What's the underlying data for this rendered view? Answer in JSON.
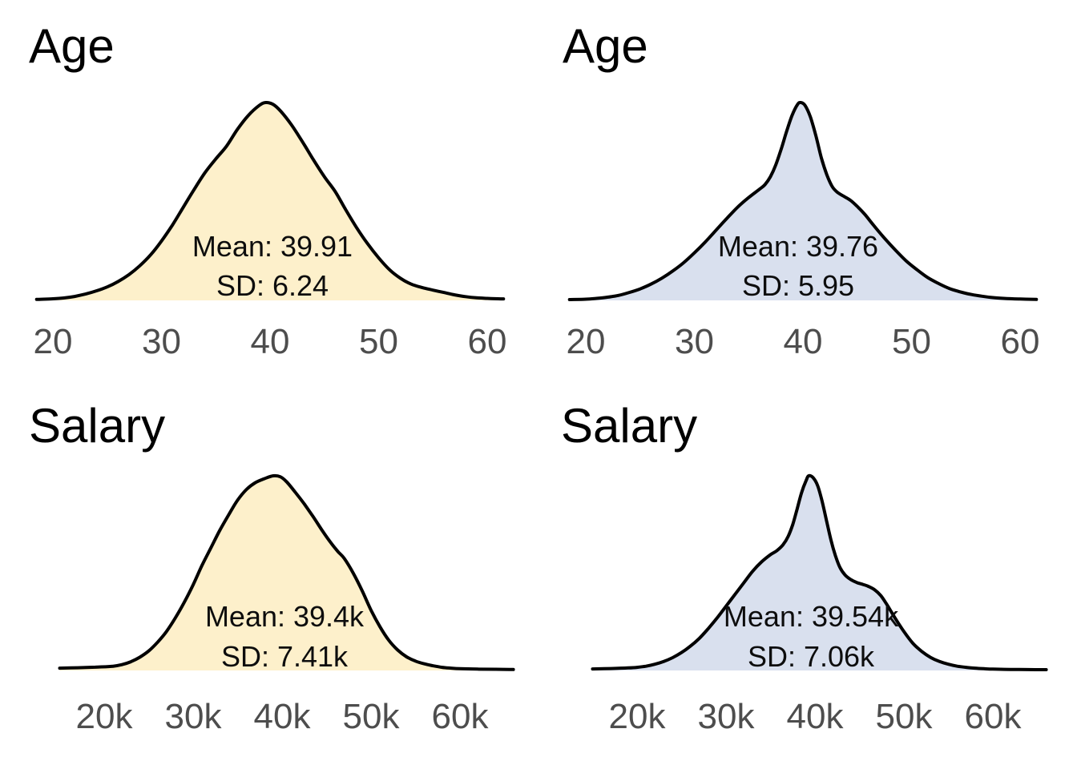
{
  "chart_data": [
    {
      "type": "area",
      "subtype": "density-curve",
      "title": "Age",
      "position": "top-left",
      "mean": 39.91,
      "sd": 6.24,
      "mean_label": "Mean: 39.91",
      "sd_label": "SD: 6.24",
      "fill_color": "#FDF0CB",
      "stroke_color": "#000000",
      "x_ticks": [
        20,
        30,
        40,
        50,
        60
      ],
      "x_tick_labels": [
        "20",
        "30",
        "40",
        "50",
        "60"
      ],
      "x_range_shown": [
        20,
        60
      ],
      "y_axis": "density, unlabeled, peak normalized to 1",
      "grid": "off",
      "legend": "none",
      "density_x": [
        18.5,
        20,
        21,
        22,
        23,
        24,
        25,
        26,
        27,
        28,
        29,
        30,
        31,
        32,
        33,
        34,
        35,
        36,
        37,
        38,
        39,
        39.6,
        40.3,
        41,
        42,
        43,
        44,
        45,
        46,
        47,
        48,
        49,
        50,
        51,
        52,
        53,
        54,
        55,
        56,
        57,
        58,
        59,
        60,
        61,
        61.5
      ],
      "density_y": [
        0.005,
        0.008,
        0.012,
        0.02,
        0.032,
        0.048,
        0.068,
        0.095,
        0.13,
        0.175,
        0.23,
        0.3,
        0.38,
        0.47,
        0.56,
        0.645,
        0.715,
        0.78,
        0.865,
        0.935,
        0.985,
        1.0,
        0.99,
        0.955,
        0.885,
        0.8,
        0.71,
        0.625,
        0.55,
        0.455,
        0.365,
        0.285,
        0.215,
        0.155,
        0.112,
        0.082,
        0.065,
        0.052,
        0.04,
        0.028,
        0.019,
        0.013,
        0.01,
        0.008,
        0.0075
      ]
    },
    {
      "type": "area",
      "subtype": "density-curve",
      "title": "Age",
      "position": "top-right",
      "mean": 39.76,
      "sd": 5.95,
      "mean_label": "Mean: 39.76",
      "sd_label": "SD: 5.95",
      "fill_color": "#D9E0EE",
      "stroke_color": "#000000",
      "x_ticks": [
        20,
        30,
        40,
        50,
        60
      ],
      "x_tick_labels": [
        "20",
        "30",
        "40",
        "50",
        "60"
      ],
      "x_range_shown": [
        20,
        60
      ],
      "y_axis": "density, unlabeled, peak normalized to 1",
      "grid": "off",
      "legend": "none",
      "density_x": [
        18.5,
        20,
        21,
        22,
        23,
        24,
        25,
        26,
        27,
        28,
        29,
        30,
        31,
        32,
        33,
        34,
        35,
        36,
        36.5,
        37,
        37.5,
        38,
        38.5,
        39,
        39.5,
        39.8,
        40.2,
        40.7,
        41.2,
        41.7,
        42.2,
        42.7,
        43.2,
        43.8,
        44.4,
        45,
        45.7,
        46.5,
        47.5,
        48.5,
        49.5,
        50.5,
        51.5,
        52.5,
        53.5,
        54.5,
        55.5,
        56.5,
        57.5,
        58.5,
        60,
        61.5
      ],
      "density_y": [
        0.004,
        0.006,
        0.01,
        0.016,
        0.025,
        0.04,
        0.058,
        0.082,
        0.112,
        0.148,
        0.19,
        0.24,
        0.295,
        0.355,
        0.415,
        0.472,
        0.52,
        0.562,
        0.585,
        0.625,
        0.685,
        0.765,
        0.855,
        0.935,
        0.99,
        1.0,
        0.985,
        0.925,
        0.83,
        0.72,
        0.635,
        0.575,
        0.545,
        0.525,
        0.505,
        0.475,
        0.435,
        0.38,
        0.315,
        0.255,
        0.2,
        0.155,
        0.115,
        0.085,
        0.06,
        0.043,
        0.03,
        0.021,
        0.014,
        0.01,
        0.007,
        0.005
      ]
    },
    {
      "type": "area",
      "subtype": "density-curve",
      "title": "Salary",
      "position": "bottom-left",
      "mean": "39.4k",
      "sd": "7.41k",
      "mean_label": "Mean: 39.4k",
      "sd_label": "SD: 7.41k",
      "fill_color": "#FDF0CB",
      "stroke_color": "#000000",
      "x_ticks": [
        20,
        30,
        40,
        50,
        60
      ],
      "x_tick_labels": [
        "20k",
        "30k",
        "40k",
        "50k",
        "60k"
      ],
      "x_range_shown": [
        "20k",
        "60k"
      ],
      "y_axis": "density, unlabeled, peak normalized to 1",
      "grid": "off",
      "legend": "none",
      "density_x": [
        15,
        17,
        19,
        21,
        22,
        23,
        24,
        25,
        26,
        27,
        28,
        29,
        30,
        31,
        32,
        33,
        34,
        35,
        36,
        37,
        38,
        39,
        39.8,
        40.5,
        41.5,
        42.5,
        43.5,
        44.5,
        45.5,
        46.3,
        47,
        48,
        49,
        50,
        51,
        52,
        53,
        54,
        55,
        56,
        57,
        58,
        59,
        60,
        62,
        64,
        66
      ],
      "density_y": [
        0.012,
        0.014,
        0.017,
        0.022,
        0.03,
        0.045,
        0.068,
        0.1,
        0.145,
        0.2,
        0.27,
        0.35,
        0.44,
        0.54,
        0.63,
        0.72,
        0.8,
        0.875,
        0.93,
        0.965,
        0.985,
        1.0,
        0.995,
        0.97,
        0.915,
        0.855,
        0.79,
        0.72,
        0.655,
        0.61,
        0.575,
        0.5,
        0.41,
        0.31,
        0.225,
        0.155,
        0.105,
        0.07,
        0.048,
        0.034,
        0.024,
        0.016,
        0.012,
        0.009,
        0.007,
        0.006,
        0.005
      ]
    },
    {
      "type": "area",
      "subtype": "density-curve",
      "title": "Salary",
      "position": "bottom-right",
      "mean": "39.54k",
      "sd": "7.06k",
      "mean_label": "Mean: 39.54k",
      "sd_label": "SD: 7.06k",
      "fill_color": "#D9E0EE",
      "stroke_color": "#000000",
      "x_ticks": [
        20,
        30,
        40,
        50,
        60
      ],
      "x_tick_labels": [
        "20k",
        "30k",
        "40k",
        "50k",
        "60k"
      ],
      "x_range_shown": [
        "20k",
        "60k"
      ],
      "y_axis": "density, unlabeled, peak normalized to 1",
      "grid": "off",
      "legend": "none",
      "density_x": [
        15,
        17,
        19,
        20,
        21,
        22,
        23,
        24,
        25,
        26,
        27,
        28,
        29,
        30,
        31,
        32,
        33,
        34,
        35,
        35.7,
        36.4,
        37,
        37.5,
        38,
        38.5,
        39,
        39.3,
        39.8,
        40.3,
        40.8,
        41.3,
        41.8,
        42.3,
        42.8,
        43.4,
        44,
        44.7,
        45.4,
        46,
        46.7,
        47.4,
        48,
        49,
        50,
        51,
        52,
        53,
        54,
        55,
        56,
        57,
        58,
        59,
        60,
        62,
        64,
        66
      ],
      "density_y": [
        0.008,
        0.01,
        0.013,
        0.016,
        0.022,
        0.032,
        0.046,
        0.066,
        0.092,
        0.125,
        0.165,
        0.215,
        0.27,
        0.33,
        0.39,
        0.45,
        0.51,
        0.558,
        0.595,
        0.615,
        0.645,
        0.69,
        0.75,
        0.83,
        0.915,
        0.975,
        1.0,
        0.99,
        0.95,
        0.87,
        0.77,
        0.67,
        0.59,
        0.53,
        0.49,
        0.468,
        0.452,
        0.442,
        0.432,
        0.415,
        0.385,
        0.345,
        0.27,
        0.2,
        0.14,
        0.098,
        0.067,
        0.046,
        0.032,
        0.022,
        0.016,
        0.012,
        0.009,
        0.007,
        0.0055,
        0.0045,
        0.004
      ]
    }
  ],
  "styles": {
    "background_color": "#ffffff",
    "title_color": "#000000",
    "annotation_color": "#0d0d0d",
    "tick_color": "#4d4d4d"
  }
}
